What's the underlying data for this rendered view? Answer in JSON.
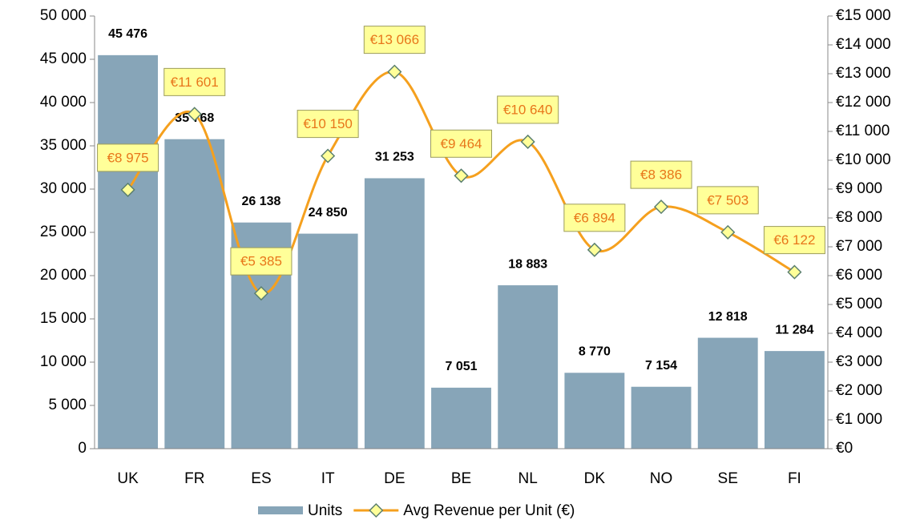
{
  "chart_data": {
    "type": "bar",
    "categories": [
      "UK",
      "FR",
      "ES",
      "IT",
      "DE",
      "BE",
      "NL",
      "DK",
      "NO",
      "SE",
      "FI"
    ],
    "series": [
      {
        "name": "Units",
        "type": "bar",
        "color": "#87a5b8",
        "values": [
          45476,
          35768,
          26138,
          24850,
          31253,
          7051,
          18883,
          8770,
          7154,
          12818,
          11284
        ],
        "value_labels": [
          "45 476",
          "35 768",
          "26 138",
          "24 850",
          "31 253",
          "7 051",
          "18 883",
          "8 770",
          "7 154",
          "12 818",
          "11 284"
        ]
      },
      {
        "name": "Avg Revenue per Unit (€)",
        "type": "line",
        "axis": "y2",
        "color": "#f5a01e",
        "marker_color": "#ffff99",
        "values": [
          8975,
          11601,
          5385,
          10150,
          13066,
          9464,
          10640,
          6894,
          8386,
          7503,
          6122
        ],
        "value_labels": [
          "€8 975",
          "€11 601",
          "€5 385",
          "€10 150",
          "€13 066",
          "€9 464",
          "€10 640",
          "€6 894",
          "€8 386",
          "€7 503",
          "€6 122"
        ]
      }
    ],
    "ylim": [
      0,
      50000
    ],
    "yticks": [
      0,
      {
        "value": 5000,
        "label": "5 000"
      },
      {
        "value": 10000,
        "label": "10 000"
      },
      {
        "value": 15000,
        "label": "15 000"
      },
      {
        "value": 20000,
        "label": "20 000"
      },
      {
        "value": 25000,
        "label": "25 000"
      },
      {
        "value": 30000,
        "label": "30 000"
      },
      {
        "value": 35000,
        "label": "35 000"
      },
      {
        "value": 40000,
        "label": "40 000"
      },
      {
        "value": 45000,
        "label": "45 000"
      },
      {
        "value": 50000,
        "label": "50 000"
      }
    ],
    "y2lim": [
      0,
      15000
    ],
    "y2ticks": [
      {
        "value": 0,
        "label": "€0"
      },
      {
        "value": 1000,
        "label": "€1 000"
      },
      {
        "value": 2000,
        "label": "€2 000"
      },
      {
        "value": 3000,
        "label": "€3 000"
      },
      {
        "value": 4000,
        "label": "€4 000"
      },
      {
        "value": 5000,
        "label": "€5 000"
      },
      {
        "value": 6000,
        "label": "€6 000"
      },
      {
        "value": 7000,
        "label": "€7 000"
      },
      {
        "value": 8000,
        "label": "€8 000"
      },
      {
        "value": 9000,
        "label": "€9 000"
      },
      {
        "value": 10000,
        "label": "€10 000"
      },
      {
        "value": 11000,
        "label": "€11 000"
      },
      {
        "value": 12000,
        "label": "€12 000"
      },
      {
        "value": 13000,
        "label": "€13 000"
      },
      {
        "value": 14000,
        "label": "€14 000"
      },
      {
        "value": 15000,
        "label": "€15 000"
      }
    ],
    "legend": "bottom"
  }
}
